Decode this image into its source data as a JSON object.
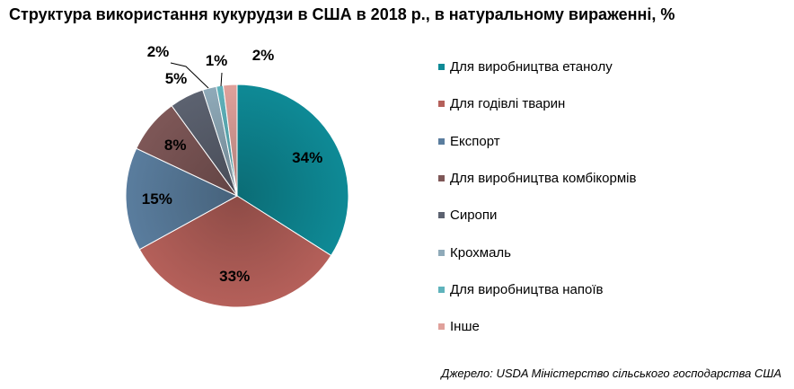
{
  "title": "Структура використання кукурудзи в США в 2018 р., в натуральному вираженні, %",
  "source": "Джерело:  USDA Міністерство сільського господарства США",
  "chart_data": {
    "type": "pie",
    "title": "Структура використання кукурудзи в США в 2018 р., в натуральному вираженні, %",
    "slices": [
      {
        "label": "Для виробництва етанолу",
        "value": 34,
        "display": "34%",
        "color": "#0e8a96"
      },
      {
        "label": "Для годівлі тварин",
        "value": 33,
        "display": "33%",
        "color": "#b5605a"
      },
      {
        "label": "Експорт",
        "value": 15,
        "display": "15%",
        "color": "#5a7d9e"
      },
      {
        "label": "Для виробництва комбікормів",
        "value": 8,
        "display": "8%",
        "color": "#7e5757"
      },
      {
        "label": "Сиропи",
        "value": 5,
        "display": "5%",
        "color": "#5c6270"
      },
      {
        "label": "Крохмаль",
        "value": 2,
        "display": "2%",
        "color": "#8faab9"
      },
      {
        "label": "Для виробництва напоїв",
        "value": 1,
        "display": "1%",
        "color": "#5fb3bc"
      },
      {
        "label": "Інше",
        "value": 2,
        "display": "2%",
        "color": "#e0a19b"
      }
    ],
    "legend_position": "right"
  }
}
